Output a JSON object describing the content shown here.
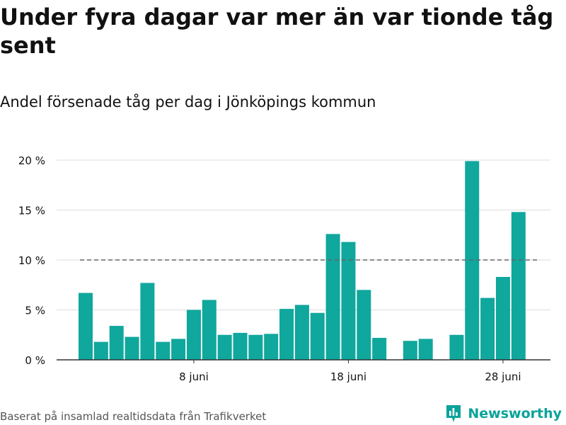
{
  "title": "Under fyra dagar var mer än var tionde tåg sent",
  "subtitle": "Andel försenade tåg per dag i Jönköpings kommun",
  "source": "Baserat på insamlad realtidsdata från Trafikverket",
  "brand": {
    "name": "Newsworthy",
    "icon": "bar-chart-logo-icon",
    "color": "#0aa39a"
  },
  "colors": {
    "bar": "#10a79d",
    "grid": "#dddddd",
    "axis": "#333333",
    "reference_line": "#666666",
    "text": "#111111"
  },
  "chart_data": {
    "type": "bar",
    "x_unit": "day of June",
    "x": [
      1,
      2,
      3,
      4,
      5,
      6,
      7,
      8,
      9,
      10,
      11,
      12,
      13,
      14,
      15,
      16,
      17,
      18,
      19,
      20,
      21,
      22,
      23,
      24,
      25,
      26,
      27,
      28,
      29,
      30
    ],
    "values": [
      6.7,
      1.8,
      3.4,
      2.3,
      7.7,
      1.8,
      2.1,
      5.0,
      6.0,
      2.5,
      2.7,
      2.5,
      2.6,
      5.1,
      5.5,
      4.7,
      12.6,
      11.8,
      7.0,
      2.2,
      null,
      1.9,
      2.1,
      null,
      2.5,
      19.9,
      6.2,
      8.3,
      14.8,
      null
    ],
    "ylim": [
      0,
      20
    ],
    "yticks": [
      0,
      5,
      10,
      15,
      20
    ],
    "ytick_labels": [
      "0 %",
      "5 %",
      "10 %",
      "15 %",
      "20 %"
    ],
    "xticks": [
      8,
      18,
      28
    ],
    "xtick_labels": [
      "8 juni",
      "18 juni",
      "28 juni"
    ],
    "reference_line": 10,
    "grid": true,
    "xlabel": "",
    "ylabel": ""
  }
}
